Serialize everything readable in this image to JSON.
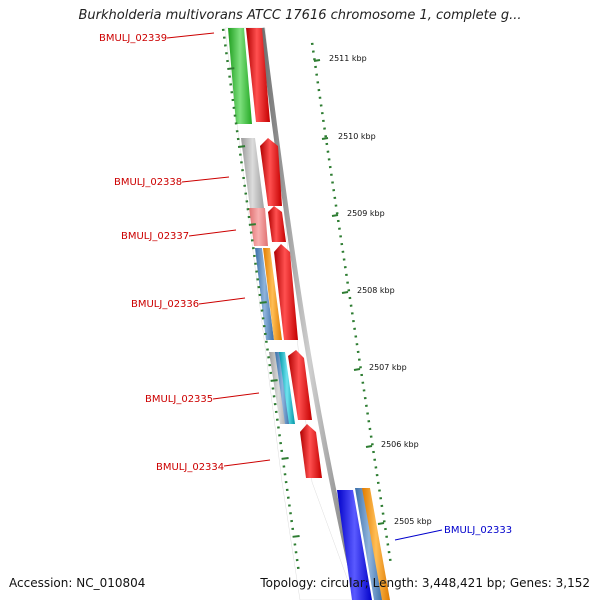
{
  "title": "Burkholderia multivorans ATCC 17616 chromosome 1, complete g...",
  "footer": {
    "accession": "Accession: NC_010804",
    "topology": "Topology: circular; Length: 3,448,421 bp; Genes: 3,152"
  },
  "colors": {
    "ring_fill": "#ffffff",
    "ring_edge": "#888888",
    "tick": "#2e7d32",
    "label_red": "#cc0000",
    "label_blue": "#0000cc"
  },
  "kbp_ticks": [
    "2511 kbp",
    "2510 kbp",
    "2509 kbp",
    "2508 kbp",
    "2507 kbp",
    "2506 kbp",
    "2505 kbp"
  ],
  "gene_labels": [
    {
      "text": "BMULJ_02339",
      "color": "red"
    },
    {
      "text": "BMULJ_02338",
      "color": "red"
    },
    {
      "text": "BMULJ_02337",
      "color": "red"
    },
    {
      "text": "BMULJ_02336",
      "color": "red"
    },
    {
      "text": "BMULJ_02335",
      "color": "red"
    },
    {
      "text": "BMULJ_02334",
      "color": "red"
    },
    {
      "text": "BMULJ_02333",
      "color": "blue"
    }
  ]
}
